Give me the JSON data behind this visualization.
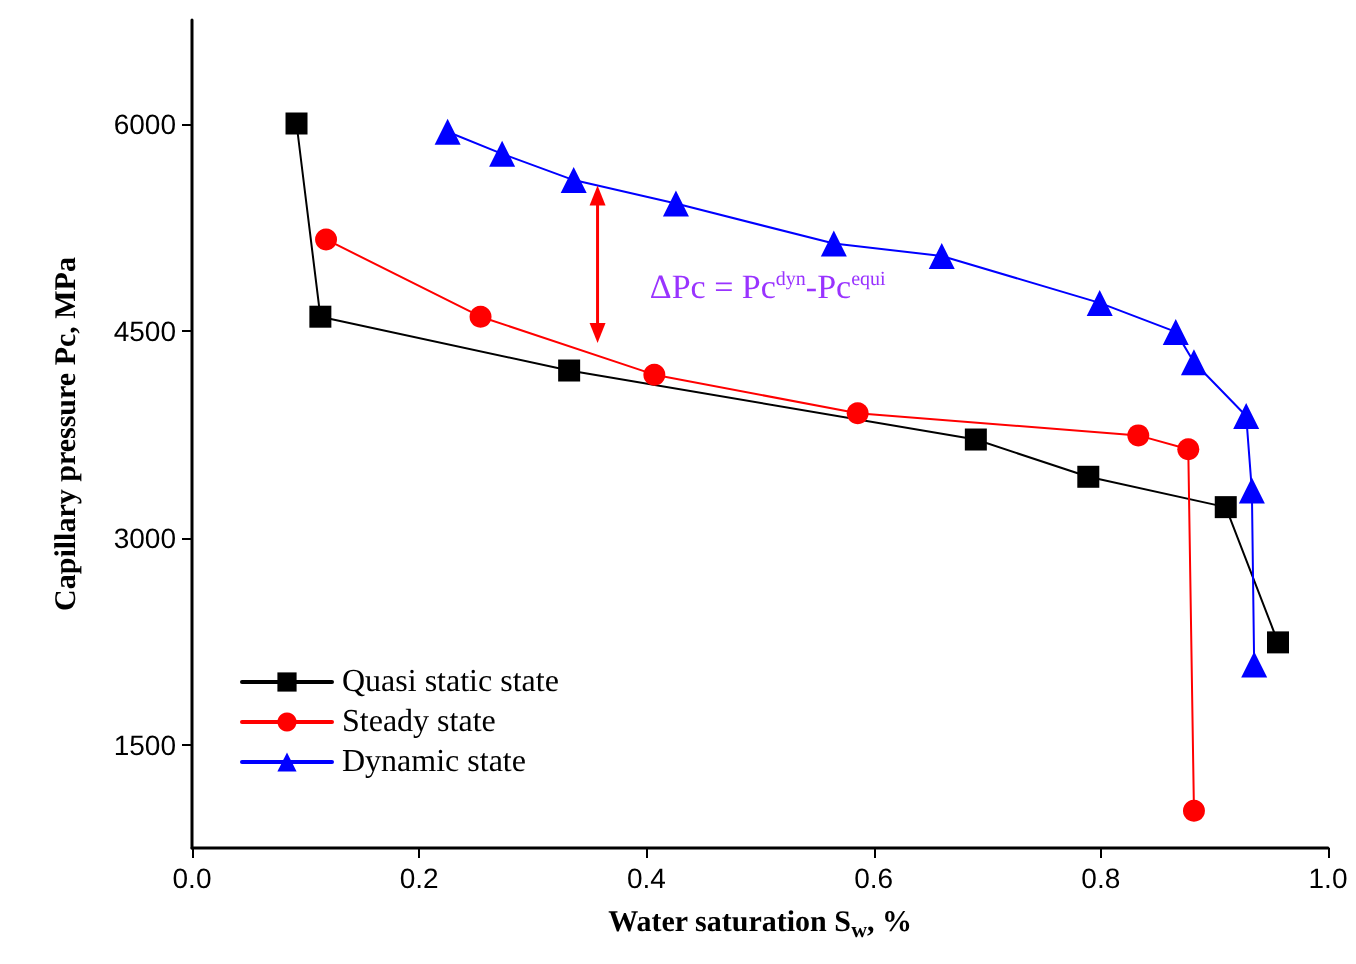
{
  "chart_data": {
    "type": "line",
    "xlabel": "Water saturation S$_{w}$, %",
    "ylabel": "Capillary pressure Pc, MPa",
    "xlim": [
      0,
      1
    ],
    "xticks": [
      {
        "value": 0,
        "label": "0.0"
      },
      0.2,
      0.4,
      0.6,
      0.8,
      {
        "value": 1,
        "label": "1.0"
      }
    ],
    "ylim": [
      750,
      6750
    ],
    "yticks": [
      1500,
      3000,
      4500,
      6000
    ],
    "grid": false,
    "legend": "bottom left",
    "line_style": "solid",
    "annotations": [
      "ΔPc = Pc$^{dyn}$-Pc$^{equi}$"
    ],
    "series": [
      {
        "name": "Quasi static state",
        "color": "#000000",
        "marker": "square",
        "x": [
          0.092,
          0.113,
          0.332,
          0.69,
          0.789,
          0.91,
          0.956
        ],
        "values": [
          6000,
          4600,
          4210,
          3710,
          3440,
          3220,
          2240
        ]
      },
      {
        "name": "Steady state",
        "color": "#ff0000",
        "marker": "circle",
        "x": [
          0.118,
          0.254,
          0.407,
          0.586,
          0.833,
          0.877,
          0.882
        ],
        "values": [
          5160,
          4600,
          4180,
          3900,
          3740,
          3640,
          1020
        ]
      },
      {
        "name": "Dynamic state",
        "color": "#0000ff",
        "marker": "triangle",
        "x": [
          0.225,
          0.273,
          0.336,
          0.426,
          0.565,
          0.66,
          0.799,
          0.866,
          0.882,
          0.928,
          0.933,
          0.935
        ],
        "values": [
          5940,
          5780,
          5590,
          5420,
          5130,
          5040,
          4700,
          4490,
          4270,
          3880,
          3340,
          2080
        ]
      }
    ]
  }
}
